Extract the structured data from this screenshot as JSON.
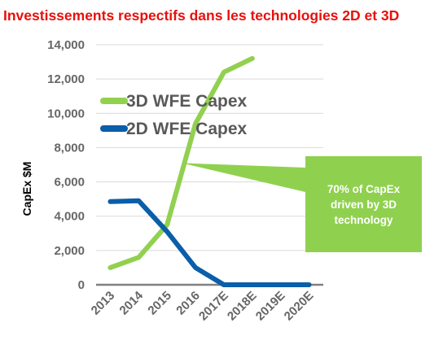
{
  "title": "Investissements respectifs dans les technologies 2D et 3D",
  "chart_data": {
    "type": "line",
    "title": "Investissements respectifs dans les technologies 2D et 3D",
    "xlabel": "",
    "ylabel": "CapEx $M",
    "categories": [
      "2013",
      "2014",
      "2015",
      "2016",
      "2017E",
      "2018E",
      "2019E",
      "2020E"
    ],
    "yticks": [
      "0",
      "2,000",
      "4,000",
      "6,000",
      "8,000",
      "10,000",
      "12,000",
      "14,000"
    ],
    "ylim": [
      0,
      14000
    ],
    "grid": true,
    "legend_position": "top-left",
    "series": [
      {
        "name": "3D WFE Capex",
        "color": "#92d050",
        "values": [
          1000,
          1600,
          3500,
          9400,
          12400,
          13200,
          null,
          null
        ]
      },
      {
        "name": "2D WFE Capex",
        "color": "#0b5ea8",
        "values": [
          4850,
          4900,
          3100,
          1000,
          0,
          0,
          0,
          0
        ]
      }
    ],
    "annotation": {
      "text": "70% of CapEx driven by 3D technology",
      "color": "#8fd14f"
    }
  }
}
